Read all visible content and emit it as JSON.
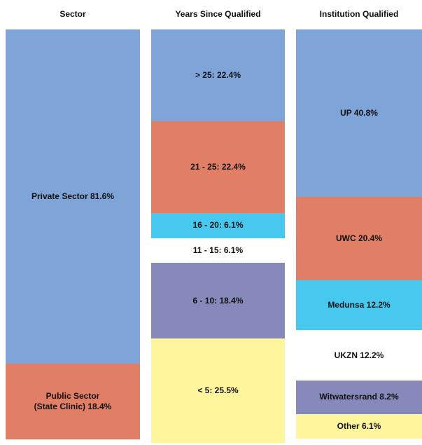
{
  "chart_data": [
    {
      "type": "stacked-column",
      "title": "Sector",
      "values": [
        81.6,
        18.4
      ],
      "value_labels": [
        "Private Sector 81.6%",
        "Public Sector\n(State Clinic) 18.4%"
      ],
      "colors": [
        "#7ea4d8",
        "#e07f65"
      ],
      "ylim": [
        0,
        100
      ]
    },
    {
      "type": "stacked-column",
      "title": "Years Since Qualified",
      "values": [
        22.4,
        22.4,
        6.1,
        6.1,
        18.4,
        25.5
      ],
      "value_labels": [
        "> 25: 22.4%",
        "21 - 25: 22.4%",
        "16 - 20: 6.1%",
        "11 - 15: 6.1%",
        "6 - 10: 18.4%",
        "< 5: 25.5%"
      ],
      "colors": [
        "#7ea4d8",
        "#e07f65",
        "#47c8ef",
        "#ffffff",
        "#8789bb",
        "#fff59d"
      ],
      "ylim": [
        0,
        100
      ]
    },
    {
      "type": "stacked-column",
      "title": "Institution Qualified",
      "values": [
        40.8,
        20.4,
        12.2,
        12.2,
        8.2,
        6.1
      ],
      "value_labels": [
        "UP 40.8%",
        "UWC 20.4%",
        "Medunsa 12.2%",
        "UKZN 12.2%",
        "Witwatersrand 8.2%",
        "Other 6.1%"
      ],
      "colors": [
        "#7ea4d8",
        "#e07f65",
        "#47c8ef",
        "#ffffff",
        "#8789bb",
        "#fff59d"
      ],
      "ylim": [
        0,
        100
      ]
    }
  ]
}
